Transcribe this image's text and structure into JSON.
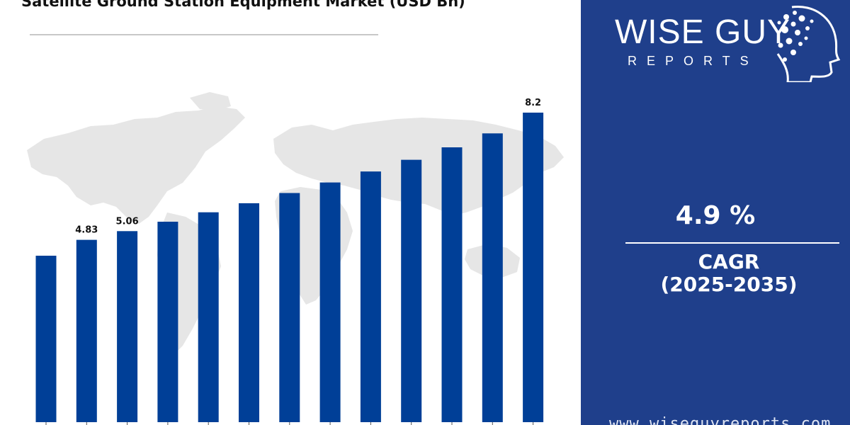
{
  "title": "Satellite Ground Station Equipment Market (USD Bn)",
  "brand": {
    "name": "WISE GUY",
    "sub": "REPORTS",
    "url": "www.wiseguyreports.com"
  },
  "cagr": {
    "value": "4.9 %",
    "label": "CAGR",
    "period": "(2025-2035)"
  },
  "colors": {
    "bar": "#003f97",
    "panel": "#1f3f8b",
    "map": "#e6e6e6"
  },
  "chart_data": {
    "type": "bar",
    "title": "Satellite Ground Station Equipment Market (USD Bn)",
    "categories": [
      "",
      "",
      "",
      "",
      "",
      "",
      "",
      "",
      "",
      "",
      "",
      "",
      ""
    ],
    "values": [
      4.41,
      4.83,
      5.06,
      5.31,
      5.56,
      5.8,
      6.07,
      6.35,
      6.64,
      6.95,
      7.28,
      7.65,
      8.2
    ],
    "data_labels": [
      null,
      "4.83",
      "5.06",
      null,
      null,
      null,
      null,
      null,
      null,
      null,
      null,
      null,
      "8.2"
    ],
    "xlabel": "",
    "ylabel": "",
    "ylim": [
      0,
      8.2
    ],
    "grid": false,
    "legend": "none"
  }
}
